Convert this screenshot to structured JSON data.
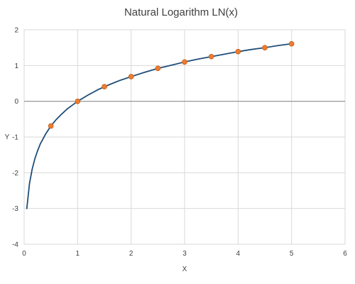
{
  "chart_data": {
    "type": "scatter",
    "title": "Natural Logarithm LN(x)",
    "xlabel": "X",
    "ylabel": "Y",
    "xlim": [
      0,
      6
    ],
    "ylim": [
      -4,
      2
    ],
    "xticks": [
      "0",
      "1",
      "2",
      "3",
      "4",
      "5",
      "6"
    ],
    "yticks": [
      "2",
      "1",
      "0",
      "-1",
      "-2",
      "-3",
      "-4"
    ],
    "grid": true,
    "legend": "none",
    "colors": {
      "curve": "#1f4e79",
      "markers": "#ed7d31",
      "marker_edge": "#c65a11"
    },
    "series": [
      {
        "style": "line",
        "x": [
          0.05,
          0.1,
          0.15,
          0.2,
          0.25,
          0.3,
          0.4,
          0.5,
          0.6,
          0.7,
          0.8,
          0.9,
          1.0,
          1.2,
          1.4,
          1.6,
          1.8,
          2.0,
          2.25,
          2.5,
          2.75,
          3.0,
          3.25,
          3.5,
          3.75,
          4.0,
          4.25,
          4.5,
          4.75,
          5.0
        ],
        "y": [
          -3.0,
          -2.3,
          -1.9,
          -1.61,
          -1.39,
          -1.2,
          -0.92,
          -0.69,
          -0.51,
          -0.36,
          -0.22,
          -0.11,
          0.0,
          0.18,
          0.34,
          0.47,
          0.59,
          0.69,
          0.81,
          0.92,
          1.01,
          1.1,
          1.18,
          1.25,
          1.32,
          1.39,
          1.45,
          1.5,
          1.56,
          1.61
        ]
      },
      {
        "style": "markers",
        "x": [
          0.5,
          1.0,
          1.5,
          2.0,
          2.5,
          3.0,
          3.5,
          4.0,
          4.5,
          5.0
        ],
        "y": [
          -0.69,
          0.0,
          0.41,
          0.69,
          0.92,
          1.1,
          1.25,
          1.39,
          1.5,
          1.61
        ]
      }
    ]
  }
}
